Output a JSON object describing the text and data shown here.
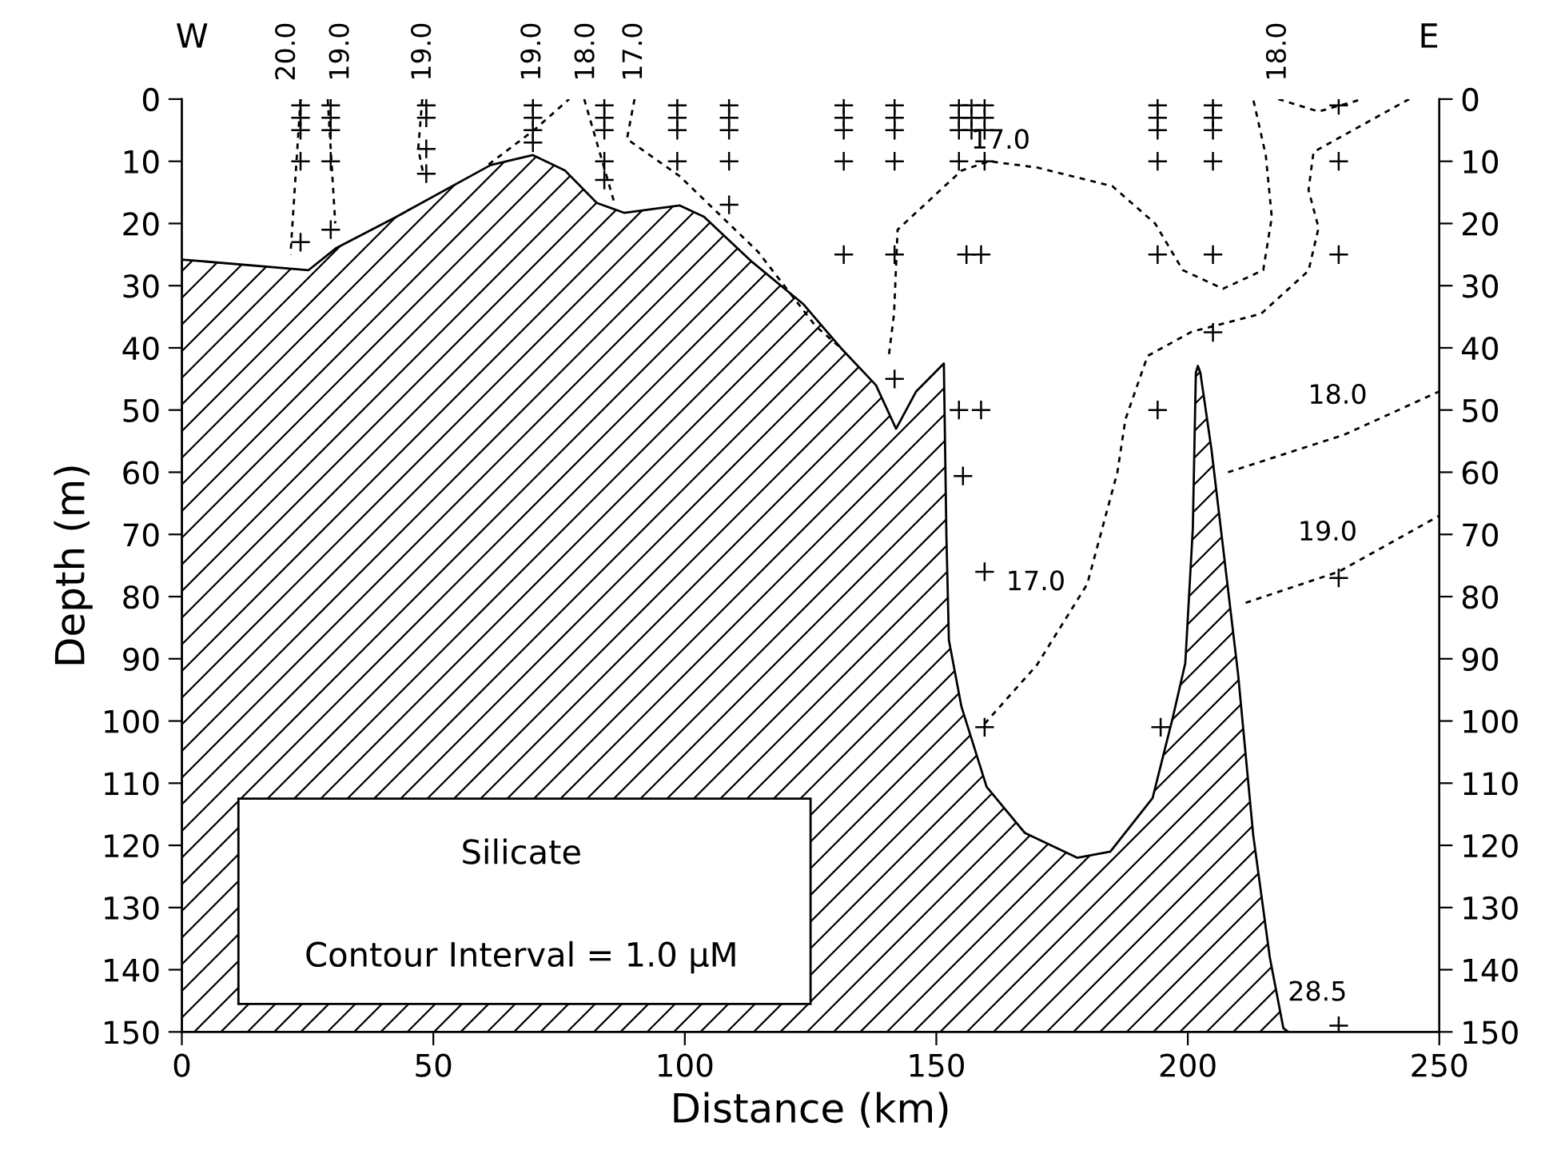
{
  "chart_data": {
    "type": "line",
    "xlabel": "Distance (km)",
    "ylabel": "Depth (m)",
    "xlim": [
      0,
      250
    ],
    "xticks": [
      0,
      50,
      100,
      150,
      200,
      250
    ],
    "ylim": [
      150,
      0
    ],
    "yticks": [
      0,
      10,
      20,
      30,
      40,
      50,
      60,
      70,
      80,
      90,
      100,
      110,
      120,
      130,
      140,
      150
    ],
    "y2lim": [
      150,
      0
    ],
    "y2ticks": [
      0,
      10,
      20,
      30,
      40,
      50,
      60,
      70,
      80,
      90,
      100,
      110,
      120,
      130,
      140,
      150
    ],
    "grid": false,
    "series": [
      {
        "type": "area",
        "color": "#000000",
        "x": [
          0,
          0,
          25.2,
          30.6,
          42.7,
          61.4,
          69.8,
          76.2,
          82.5,
          88,
          99,
          103.8,
          113.4,
          123.6,
          131,
          138,
          142,
          146,
          151.5,
          152,
          152.5,
          155,
          160,
          167.6,
          178,
          184.6,
          193,
          197,
          199.5,
          201,
          201.6,
          202,
          202.5,
          204.7,
          210,
          213,
          216.3,
          219,
          220
        ],
        "values": [
          150,
          25.8,
          27.5,
          24,
          18.9,
          10.6,
          9,
          11.5,
          16.7,
          18.3,
          17.1,
          18.9,
          26.2,
          33,
          40,
          46,
          53,
          47,
          42.5,
          70,
          87,
          97.7,
          110.6,
          118,
          122,
          121,
          112.4,
          99.5,
          90.7,
          69,
          44,
          42.9,
          44,
          56.3,
          92.5,
          118.3,
          138,
          149.4,
          150
        ]
      },
      {
        "line_style": "dashed",
        "color": "#000000",
        "x": [
          23.6,
          21.6
        ],
        "values": [
          0,
          25
        ]
      },
      {
        "line_style": "dashed",
        "color": "#000000",
        "x": [
          29,
          30.5
        ],
        "values": [
          0,
          20
        ]
      },
      {
        "line_style": "dashed",
        "color": "#000000",
        "x": [
          47.8,
          47,
          48
        ],
        "values": [
          0,
          8,
          12
        ]
      },
      {
        "line_style": "dashed",
        "color": "#000000",
        "x": [
          61,
          70,
          77
        ],
        "values": [
          10.5,
          5,
          0
        ]
      },
      {
        "line_style": "dashed",
        "color": "#000000",
        "x": [
          80,
          86
        ],
        "values": [
          0,
          16.7
        ]
      },
      {
        "line_style": "dashed",
        "color": "#000000",
        "x": [
          90,
          88.5,
          99,
          114.5,
          126,
          131
        ],
        "values": [
          0,
          6.4,
          12.4,
          24.5,
          36.5,
          40
        ]
      },
      {
        "line_style": "dashed",
        "color": "#000000",
        "x": [
          140.6,
          141.6,
          142.3,
          155,
          160.5,
          170,
          185,
          193.5,
          199,
          207,
          215,
          216.7,
          215.5,
          213
        ],
        "values": [
          41,
          34.5,
          21,
          11.5,
          10,
          11,
          14,
          20,
          27.5,
          30.5,
          27.5,
          19,
          9,
          0
        ]
      },
      {
        "line_style": "dashed",
        "color": "#000000",
        "x": [
          218,
          226,
          234.7
        ],
        "values": [
          0,
          2,
          0
        ]
      },
      {
        "line_style": "dashed",
        "color": "#000000",
        "x": [
          244,
          225,
          224,
          226,
          224,
          214.6,
          200.8,
          192,
          187.6,
          186,
          180,
          170,
          159
        ],
        "values": [
          0,
          8.5,
          14.6,
          20.7,
          27.6,
          34.5,
          37.4,
          41.3,
          51.5,
          60,
          78,
          91,
          101
        ]
      },
      {
        "line_style": "dashed",
        "color": "#000000",
        "x": [
          208,
          231,
          250
        ],
        "values": [
          60,
          54,
          47
        ]
      },
      {
        "line_style": "dashed",
        "color": "#000000",
        "x": [
          211.5,
          230,
          250
        ],
        "values": [
          81,
          76,
          67
        ]
      },
      {
        "type": "scatter",
        "marker": "cross",
        "color": "#000000",
        "x": [
          23.6,
          23.6,
          23.6,
          23.6,
          23.6,
          29.6,
          29.6,
          29.6,
          29.6,
          29.6,
          48.6,
          48.6,
          48.6,
          48.6,
          69.8,
          69.8,
          69.8,
          69.8,
          84,
          84,
          84,
          84,
          84,
          98.5,
          98.5,
          98.5,
          98.5,
          108.8,
          108.8,
          108.8,
          108.8,
          108.8,
          131.6,
          131.6,
          131.6,
          131.6,
          131.6,
          141.7,
          141.7,
          141.7,
          141.7,
          141.7,
          141.7,
          154.5,
          154.5,
          154.5,
          154.5,
          157,
          157,
          157,
          159.6,
          159.6,
          159.6,
          159.6,
          156,
          158.9,
          154.5,
          158.9,
          155.3,
          159.6,
          159.6,
          194,
          194,
          194,
          194,
          194,
          194,
          194.6,
          205,
          205,
          205,
          205,
          205,
          205,
          230,
          230,
          230,
          230,
          230
        ],
        "values": [
          1,
          3,
          5,
          10,
          23,
          1,
          3,
          5,
          10,
          21,
          1,
          3,
          8,
          12,
          1,
          3,
          5,
          7,
          1,
          3,
          5,
          10,
          13,
          1,
          3,
          5,
          10,
          1,
          3,
          5,
          10,
          17,
          1,
          3,
          5,
          10,
          25,
          1,
          3,
          5,
          10,
          25,
          45,
          1,
          3,
          5,
          10,
          1,
          3,
          5,
          1,
          3,
          5,
          10,
          25,
          25,
          50,
          50,
          60.6,
          76,
          101,
          1,
          3,
          5,
          10,
          25,
          50,
          101,
          1,
          3,
          5,
          10,
          25,
          37.5,
          1,
          10,
          25,
          77,
          149
        ]
      }
    ],
    "annotations": [
      "W",
      "E",
      "Silicate",
      "Contour Interval = 1.0 μM",
      {
        "text": "20.0",
        "x": 21,
        "y": 0
      },
      {
        "text": "19.0",
        "x": 31.7,
        "y": 0
      },
      {
        "text": "19.0",
        "x": 48,
        "y": 0
      },
      {
        "text": "19.0",
        "x": 69.8,
        "y": 0
      },
      {
        "text": "18.0",
        "x": 80.5,
        "y": 0
      },
      {
        "text": "17.0",
        "x": 90,
        "y": 0
      },
      {
        "text": "18.0",
        "x": 218,
        "y": 0
      },
      {
        "text": "17.0",
        "x": 170,
        "y": 11
      },
      {
        "text": "18.0",
        "x": 237,
        "y": 52
      },
      {
        "text": "19.0",
        "x": 235,
        "y": 74
      },
      {
        "text": "17.0",
        "x": 177,
        "y": 82
      },
      {
        "text": "28.5",
        "x": 233,
        "y": 148
      }
    ]
  }
}
